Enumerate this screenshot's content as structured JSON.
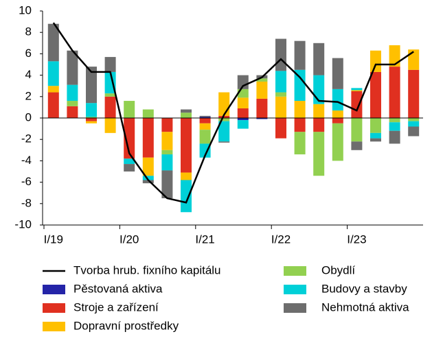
{
  "chart_data": {
    "type": "bar",
    "categories": [
      "I/19",
      null,
      null,
      null,
      "I/20",
      null,
      null,
      null,
      "I/21",
      null,
      null,
      null,
      "I/22",
      null,
      null,
      null,
      "I/23",
      null,
      null,
      null
    ],
    "series": [
      {
        "name": "Tvorba hrub. fixního kapitálu",
        "type": "line",
        "color": "#000000",
        "values": [
          8.9,
          6.3,
          4.3,
          4.3,
          -3.3,
          -5.8,
          -7.5,
          -7.9,
          -3.5,
          0.3,
          3.0,
          3.8,
          5.5,
          3.8,
          1.6,
          1.5,
          0.7,
          5.0,
          5.0,
          6.2
        ]
      },
      {
        "name": "Pěstovaná aktiva",
        "color": "#2424a8",
        "values": [
          0,
          0,
          0,
          0,
          0,
          0,
          0,
          0,
          0.1,
          0,
          -0.2,
          -0.1,
          0,
          0,
          0,
          0,
          0,
          0,
          0,
          0
        ]
      },
      {
        "name": "Stroje a zařízení",
        "color": "#e03020",
        "values": [
          2.4,
          1.1,
          -0.3,
          2.0,
          -3.8,
          -3.7,
          -1.3,
          -5.1,
          -0.5,
          0.2,
          0.9,
          1.8,
          -1.9,
          -1.3,
          -1.3,
          -0.5,
          2.5,
          4.3,
          4.8,
          4.5
        ]
      },
      {
        "name": "Dopravní prostředky",
        "color": "#ffc000",
        "values": [
          0.6,
          0,
          -0.2,
          -1.4,
          0,
          -1.7,
          -1.7,
          -0.7,
          -0.6,
          2.2,
          1.0,
          1.6,
          2.0,
          1.6,
          1.3,
          0.7,
          0.1,
          2.0,
          2.0,
          1.9
        ]
      },
      {
        "name": "Obydlí",
        "color": "#92d050",
        "values": [
          0,
          0.5,
          0.1,
          0.3,
          1.6,
          0.8,
          -0.4,
          0.5,
          -1.3,
          -0.3,
          0.8,
          0.3,
          0.4,
          -2.1,
          -4.1,
          -3.5,
          -2.2,
          -1.4,
          -0.4,
          -0.3
        ]
      },
      {
        "name": "Budovy a stavby",
        "color": "#00d0d8",
        "values": [
          2.3,
          1.5,
          1.3,
          2.0,
          -0.5,
          -0.4,
          -1.5,
          -3.0,
          -1.3,
          -1.9,
          -0.8,
          0,
          2.0,
          2.9,
          2.7,
          2.0,
          0.2,
          -0.5,
          -0.8,
          -0.5
        ]
      },
      {
        "name": "Nehmotná aktiva",
        "color": "#6d6d6d",
        "values": [
          3.5,
          3.2,
          3.4,
          1.4,
          -0.7,
          -0.3,
          -2.6,
          0.3,
          0.1,
          -0.1,
          1.3,
          0.3,
          3.0,
          2.7,
          3.0,
          2.9,
          -0.8,
          -0.3,
          -1.2,
          -0.9
        ]
      }
    ],
    "ylim": [
      -10,
      10
    ],
    "yticks": [
      -10,
      -8,
      -6,
      -4,
      -2,
      0,
      2,
      4,
      6,
      8,
      10
    ]
  }
}
